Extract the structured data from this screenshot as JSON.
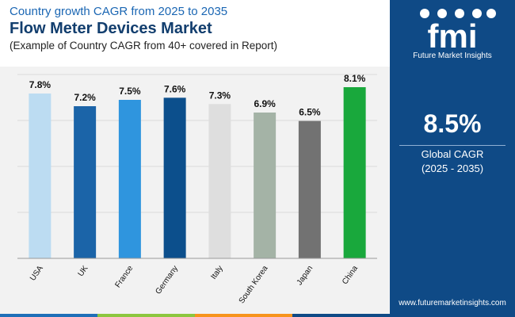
{
  "header": {
    "subtitle": "Country growth CAGR from 2025 to 2035",
    "title": "Flow Meter Devices Market",
    "note": "(Example of Country CAGR from 40+ covered in Report)"
  },
  "side_panel": {
    "brand": "Future Market Insights",
    "logo_text": "fmi",
    "global_cagr_value": "8.5%",
    "global_cagr_label": "Global CAGR",
    "global_cagr_period": "(2025 - 2035)",
    "url": "www.futuremarketinsights.com"
  },
  "colors": {
    "panel": "#0f4a86",
    "title": "#123e6e",
    "subtitle": "#1a66b3",
    "bottom_bar": [
      "#1f6fb8",
      "#8cc63f",
      "#f7941d",
      "#0f4a86"
    ]
  },
  "chart_data": {
    "type": "bar",
    "categories": [
      "USA",
      "UK",
      "France",
      "Germany",
      "Italy",
      "South Korea",
      "Japan",
      "China"
    ],
    "values": [
      7.8,
      7.2,
      7.5,
      7.6,
      7.3,
      6.9,
      6.5,
      8.1
    ],
    "value_labels": [
      "7.8%",
      "7.2%",
      "7.5%",
      "7.6%",
      "7.3%",
      "6.9%",
      "6.5%",
      "8.1%"
    ],
    "colors": [
      "#bcdcf2",
      "#1b64a8",
      "#2f95de",
      "#0c4f8c",
      "#dedede",
      "#a4b3a6",
      "#727272",
      "#19a83c"
    ],
    "title": "",
    "xlabel": "",
    "ylabel": "",
    "ylim": [
      0,
      8.7
    ],
    "grid": true
  }
}
